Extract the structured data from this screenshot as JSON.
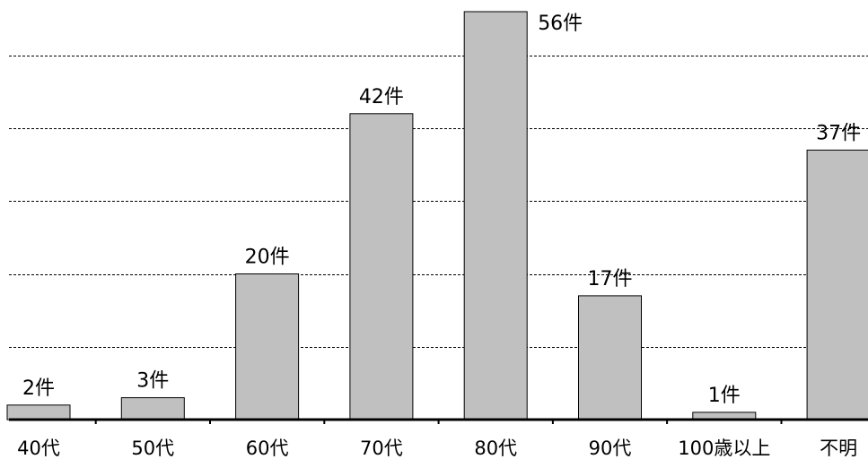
{
  "chart_data": {
    "type": "bar",
    "categories": [
      "40代",
      "50代",
      "60代",
      "70代",
      "80代",
      "90代",
      "100歳以上",
      "不明"
    ],
    "values": [
      2,
      3,
      20,
      42,
      56,
      17,
      1,
      37
    ],
    "data_labels": [
      "2件",
      "3件",
      "20件",
      "42件",
      "56件",
      "17件",
      "1件",
      "37件"
    ],
    "unit": "件",
    "ylim": [
      0,
      56
    ],
    "gridlines": [
      10,
      20,
      30,
      40,
      50
    ],
    "grid": true,
    "bar_color": "#c0c0c0",
    "title": "",
    "xlabel": "",
    "ylabel": ""
  }
}
